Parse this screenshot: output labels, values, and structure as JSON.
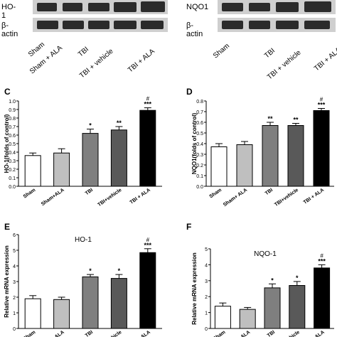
{
  "blots": {
    "left": {
      "protein": "HO-1",
      "loading": "β-actin"
    },
    "right": {
      "protein": "NQO1",
      "loading": "β-actin"
    },
    "lanes": [
      "Sham",
      "Sham + ALA",
      "TBI",
      "TBI + vehicle",
      "TBI + ALA"
    ],
    "lanes_right": [
      "Sham",
      "TBI",
      "TBI + vehicle",
      "TBI + ALA"
    ]
  },
  "chart_data": [
    {
      "panel": "C",
      "type": "bar",
      "categories": [
        "Sham",
        "Sham+ALA",
        "TBI",
        "TBI+vehicle",
        "TBI + ALA"
      ],
      "values": [
        0.36,
        0.39,
        0.62,
        0.66,
        0.89
      ],
      "errors": [
        0.03,
        0.05,
        0.05,
        0.04,
        0.03
      ],
      "sig": [
        "",
        "",
        "*",
        "**",
        "***"
      ],
      "sig2": [
        "",
        "",
        "",
        "",
        "#"
      ],
      "fills": [
        "#ffffff",
        "#bfbfbf",
        "#7f7f7f",
        "#595959",
        "#000000"
      ],
      "ylabel": "HO-1(folds of control)",
      "ylim": [
        0,
        1.0
      ],
      "yticks": [
        "0.0",
        "0.1",
        "0.2",
        "0.3",
        "0.4",
        "0.5",
        "0.6",
        "0.7",
        "0.8",
        "0.9",
        "1.0"
      ]
    },
    {
      "panel": "D",
      "type": "bar",
      "categories": [
        "Sham",
        "Sham+ ALA",
        "TBI",
        "TBI+vehicle",
        "TBI + ALA"
      ],
      "values": [
        0.37,
        0.39,
        0.57,
        0.57,
        0.71
      ],
      "errors": [
        0.03,
        0.03,
        0.03,
        0.02,
        0.02
      ],
      "sig": [
        "",
        "",
        "**",
        "**",
        "***"
      ],
      "sig2": [
        "",
        "",
        "",
        "",
        "#"
      ],
      "fills": [
        "#ffffff",
        "#bfbfbf",
        "#7f7f7f",
        "#595959",
        "#000000"
      ],
      "ylabel": "NQO1(folds of control)",
      "ylim": [
        0,
        0.8
      ],
      "yticks": [
        "0.0",
        "0.1",
        "0.2",
        "0.3",
        "0.4",
        "0.5",
        "0.6",
        "0.7",
        "0.8"
      ]
    },
    {
      "panel": "E",
      "type": "bar",
      "title": "HO-1",
      "categories": [
        "Sham",
        "ALA",
        "TBI",
        "vehicle",
        "ALA"
      ],
      "values": [
        1.9,
        1.85,
        3.3,
        3.2,
        4.85
      ],
      "errors": [
        0.2,
        0.15,
        0.15,
        0.25,
        0.25
      ],
      "sig": [
        "",
        "",
        "*",
        "*",
        "***"
      ],
      "sig2": [
        "",
        "",
        "",
        "",
        "#"
      ],
      "fills": [
        "#ffffff",
        "#bfbfbf",
        "#7f7f7f",
        "#595959",
        "#000000"
      ],
      "ylabel": "Relative mRNA expression",
      "ylim": [
        0,
        6
      ],
      "yticks": [
        "0",
        "1",
        "2",
        "3",
        "4",
        "5",
        "6"
      ]
    },
    {
      "panel": "F",
      "type": "bar",
      "title": "NQO-1",
      "categories": [
        "Sham",
        "ALA",
        "TBI",
        "vehicle",
        "ALA"
      ],
      "values": [
        1.4,
        1.2,
        2.55,
        2.7,
        3.8
      ],
      "errors": [
        0.2,
        0.12,
        0.25,
        0.25,
        0.2
      ],
      "sig": [
        "",
        "",
        "*",
        "*",
        "***"
      ],
      "sig2": [
        "",
        "",
        "",
        "",
        "#"
      ],
      "fills": [
        "#ffffff",
        "#bfbfbf",
        "#7f7f7f",
        "#595959",
        "#000000"
      ],
      "ylabel": "Relative mRNA expression",
      "ylim": [
        0,
        5
      ],
      "yticks": [
        "0",
        "1",
        "2",
        "3",
        "4",
        "5"
      ]
    }
  ]
}
